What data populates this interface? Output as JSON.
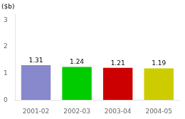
{
  "chart_data": {
    "type": "bar",
    "title": "($b)",
    "categories": [
      "2001-02",
      "2002-03",
      "2003-04",
      "2004-05"
    ],
    "values": [
      1.31,
      1.24,
      1.21,
      1.19
    ],
    "colors": [
      "#8888cc",
      "#00cc00",
      "#cc0000",
      "#cccc00"
    ],
    "ylim": [
      0,
      3.2
    ],
    "yticks": [
      0,
      1,
      2,
      3
    ],
    "grid": false,
    "data_labels": true
  }
}
